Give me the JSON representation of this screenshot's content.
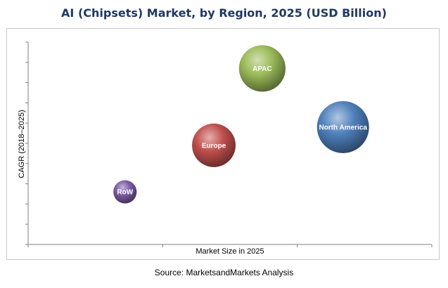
{
  "chart_data": {
    "type": "bubble",
    "title": "AI (Chipsets) Market, by Region, 2025 (USD Billion)",
    "xlabel": "Market Size in 2025",
    "ylabel": "CAGR (2018–2025)",
    "xlim": [
      0,
      10
    ],
    "ylim": [
      0,
      10
    ],
    "grid": false,
    "series": [
      {
        "label": "RoW",
        "x": 2.4,
        "y": 2.6,
        "size": 1,
        "color": "#7b5aa6"
      },
      {
        "label": "Europe",
        "x": 4.6,
        "y": 4.9,
        "size": 3.5,
        "color": "#c0504d"
      },
      {
        "label": "APAC",
        "x": 5.8,
        "y": 8.7,
        "size": 4.0,
        "color": "#9bbb59"
      },
      {
        "label": "North America",
        "x": 7.8,
        "y": 5.8,
        "size": 5.0,
        "color": "#4f81bd"
      }
    ]
  },
  "footer": {
    "source": "Source: MarketsandMarkets Analysis"
  }
}
